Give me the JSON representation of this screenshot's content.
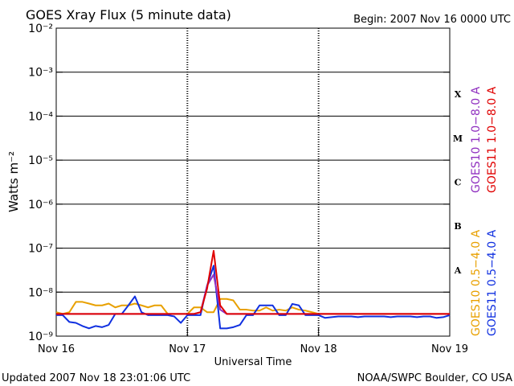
{
  "chart_data": {
    "type": "line",
    "title": "GOES Xray Flux (5 minute data)",
    "subtitle": "Begin:  2007 Nov 16 0000 UTC",
    "xlabel": "Universal Time",
    "ylabel": "Watts m⁻²",
    "footer_left": "Updated 2007 Nov 18 23:01:06 UTC",
    "footer_right": "NOAA/SWPC Boulder, CO USA",
    "class_labels": [
      "X",
      "M",
      "C",
      "B",
      "A"
    ],
    "yscale": "log",
    "grid": true,
    "xlim": [
      16,
      19
    ],
    "xticks": [
      {
        "value": 16,
        "label": "Nov 16"
      },
      {
        "value": 17,
        "label": "Nov 17"
      },
      {
        "value": 18,
        "label": "Nov 18"
      },
      {
        "value": 19,
        "label": "Nov 19"
      }
    ],
    "ylim": [
      1e-09,
      0.01
    ],
    "yticks": [
      {
        "value": 1e-09,
        "label": "10⁻⁹"
      },
      {
        "value": 1e-08,
        "label": "10⁻⁸"
      },
      {
        "value": 1e-07,
        "label": "10⁻⁷"
      },
      {
        "value": 1e-06,
        "label": "10⁻⁶"
      },
      {
        "value": 1e-05,
        "label": "10⁻⁵"
      },
      {
        "value": 0.0001,
        "label": "10⁻⁴"
      },
      {
        "value": 0.001,
        "label": "10⁻³"
      },
      {
        "value": 0.01,
        "label": "10⁻²"
      }
    ],
    "x": [
      16,
      16.05,
      16.1,
      16.15,
      16.2,
      16.25,
      16.3,
      16.35,
      16.4,
      16.45,
      16.5,
      16.55,
      16.6,
      16.65,
      16.7,
      16.75,
      16.8,
      16.85,
      16.9,
      16.95,
      17,
      17.05,
      17.1,
      17.15,
      17.2,
      17.25,
      17.3,
      17.35,
      17.4,
      17.45,
      17.5,
      17.55,
      17.6,
      17.65,
      17.7,
      17.75,
      17.8,
      17.85,
      17.9,
      17.95,
      18,
      18.05,
      18.1,
      18.15,
      18.2,
      18.25,
      18.3,
      18.35,
      18.4,
      18.45,
      18.5,
      18.55,
      18.6,
      18.65,
      18.7,
      18.75,
      18.8,
      18.85,
      18.9,
      18.95,
      19
    ],
    "series": [
      {
        "name": "GOES10 1.0−8.0 A",
        "color": "#9030c0",
        "values": [
          3.2e-09,
          3.2e-09,
          3.2e-09,
          3.2e-09,
          3.2e-09,
          3.2e-09,
          3.2e-09,
          3.2e-09,
          3.2e-09,
          3.2e-09,
          3.2e-09,
          3.2e-09,
          3.2e-09,
          3.2e-09,
          3.2e-09,
          3.2e-09,
          3.2e-09,
          3.2e-09,
          3.2e-09,
          3.2e-09,
          3.2e-09,
          3.2e-09,
          3.5e-09,
          1.4e-08,
          2.5e-08,
          4e-09,
          3.2e-09,
          3.2e-09,
          3.2e-09,
          3.2e-09,
          3.2e-09,
          3.2e-09,
          3.2e-09,
          3.2e-09,
          3.2e-09,
          3.2e-09,
          3.2e-09,
          3.2e-09,
          3.2e-09,
          3.2e-09,
          3.2e-09,
          3.2e-09,
          3.2e-09,
          3.2e-09,
          3.2e-09,
          3.2e-09,
          3.2e-09,
          3.2e-09,
          3.2e-09,
          3.2e-09,
          3.2e-09,
          3.2e-09,
          3.2e-09,
          3.2e-09,
          3.2e-09,
          3.2e-09,
          3.2e-09,
          3.2e-09,
          3.2e-09,
          3.2e-09,
          3.2e-09
        ]
      },
      {
        "name": "GOES11 1.0−8.0 A",
        "color": "#e00000",
        "values": [
          3.2e-09,
          3.2e-09,
          3.2e-09,
          3.2e-09,
          3.2e-09,
          3.2e-09,
          3.2e-09,
          3.2e-09,
          3.2e-09,
          3.2e-09,
          3.2e-09,
          3.2e-09,
          3.2e-09,
          3.2e-09,
          3.2e-09,
          3.2e-09,
          3.2e-09,
          3.2e-09,
          3.2e-09,
          3.2e-09,
          3.2e-09,
          3.2e-09,
          3.5e-09,
          1.2e-08,
          8.7e-08,
          5e-09,
          3.2e-09,
          3.2e-09,
          3.2e-09,
          3.2e-09,
          3.2e-09,
          3.2e-09,
          3.2e-09,
          3.2e-09,
          3.2e-09,
          3.2e-09,
          3.2e-09,
          3.2e-09,
          3.2e-09,
          3.2e-09,
          3.2e-09,
          3.2e-09,
          3.2e-09,
          3.2e-09,
          3.2e-09,
          3.2e-09,
          3.2e-09,
          3.2e-09,
          3.2e-09,
          3.2e-09,
          3.2e-09,
          3.2e-09,
          3.2e-09,
          3.2e-09,
          3.2e-09,
          3.2e-09,
          3.2e-09,
          3.2e-09,
          3.2e-09,
          3.2e-09,
          3.2e-09
        ]
      },
      {
        "name": "GOES10 0.5−4.0 A",
        "color": "#e8a000",
        "values": [
          3.5e-09,
          3.2e-09,
          3.5e-09,
          6e-09,
          6e-09,
          5.5e-09,
          5e-09,
          5e-09,
          5.5e-09,
          4.5e-09,
          5e-09,
          5e-09,
          5.5e-09,
          5e-09,
          4.5e-09,
          5e-09,
          5e-09,
          3.2e-09,
          3.2e-09,
          3.2e-09,
          3.2e-09,
          4.5e-09,
          4.5e-09,
          3.5e-09,
          3.5e-09,
          7e-09,
          7e-09,
          6.5e-09,
          4e-09,
          4e-09,
          3.8e-09,
          3.8e-09,
          4.5e-09,
          3.8e-09,
          4e-09,
          3.8e-09,
          4.5e-09,
          4e-09,
          3.8e-09,
          3.5e-09,
          3.2e-09,
          3.2e-09,
          3.2e-09,
          3.2e-09,
          3.2e-09,
          3.2e-09,
          3.2e-09,
          3.2e-09,
          3.2e-09,
          3.2e-09,
          3.2e-09,
          3.2e-09,
          3.2e-09,
          3.2e-09,
          3.2e-09,
          3.2e-09,
          3.2e-09,
          3.2e-09,
          3.2e-09,
          3.2e-09,
          3.2e-09
        ]
      },
      {
        "name": "GOES11 0.5−4.0 A",
        "color": "#1030e0",
        "values": [
          3e-09,
          3e-09,
          2.1e-09,
          2e-09,
          1.7e-09,
          1.5e-09,
          1.7e-09,
          1.6e-09,
          1.8e-09,
          3.2e-09,
          3.2e-09,
          5e-09,
          8e-09,
          3.5e-09,
          3e-09,
          3e-09,
          3e-09,
          3e-09,
          2.8e-09,
          2e-09,
          3e-09,
          3e-09,
          3e-09,
          1.4e-08,
          4e-08,
          1.5e-09,
          1.5e-09,
          1.6e-09,
          1.8e-09,
          3e-09,
          3e-09,
          5e-09,
          5e-09,
          5e-09,
          3e-09,
          3e-09,
          5.4e-09,
          5e-09,
          3e-09,
          3e-09,
          3e-09,
          2.6e-09,
          2.7e-09,
          2.8e-09,
          2.8e-09,
          2.8e-09,
          2.7e-09,
          2.8e-09,
          2.8e-09,
          2.8e-09,
          2.8e-09,
          2.7e-09,
          2.8e-09,
          2.8e-09,
          2.8e-09,
          2.7e-09,
          2.8e-09,
          2.8e-09,
          2.6e-09,
          2.7e-09,
          3e-09
        ]
      }
    ]
  }
}
